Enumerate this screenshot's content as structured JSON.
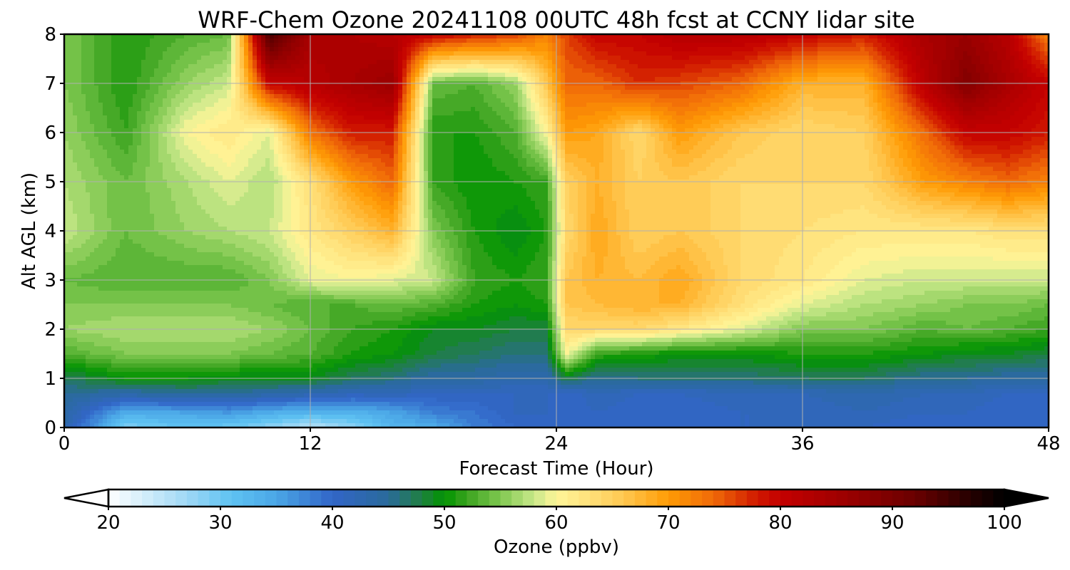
{
  "chart_data": {
    "type": "heatmap",
    "title": "WRF-Chem Ozone  20241108 00UTC 48h fcst at CCNY lidar site",
    "xlabel": "Forecast Time (Hour)",
    "ylabel": "Alt AGL (km)",
    "xlim": [
      0,
      48
    ],
    "ylim": [
      0,
      8
    ],
    "x_ticks": [
      0,
      12,
      24,
      36,
      48
    ],
    "y_ticks": [
      0,
      1,
      2,
      3,
      4,
      5,
      6,
      7,
      8
    ],
    "grid": true,
    "colorbar": {
      "label": "Ozone  (ppbv)",
      "orientation": "horizontal",
      "placement": "bottom",
      "range": [
        20,
        100
      ],
      "step": 1,
      "extend": "both",
      "ticks": [
        20,
        30,
        40,
        50,
        60,
        70,
        80,
        90,
        100
      ],
      "anchors": [
        {
          "v": 20,
          "c": "#ffffff"
        },
        {
          "v": 27,
          "c": "#9fd8f5"
        },
        {
          "v": 31,
          "c": "#5ec2f2"
        },
        {
          "v": 35,
          "c": "#4aa6e6"
        },
        {
          "v": 40,
          "c": "#3266c8"
        },
        {
          "v": 45,
          "c": "#2a6a9a"
        },
        {
          "v": 48,
          "c": "#1f8040"
        },
        {
          "v": 50,
          "c": "#009400"
        },
        {
          "v": 52,
          "c": "#3aa31f"
        },
        {
          "v": 55,
          "c": "#80c850"
        },
        {
          "v": 58,
          "c": "#c8e88a"
        },
        {
          "v": 60,
          "c": "#fff599"
        },
        {
          "v": 63,
          "c": "#ffe07a"
        },
        {
          "v": 66,
          "c": "#ffc850"
        },
        {
          "v": 70,
          "c": "#ff9b05"
        },
        {
          "v": 74,
          "c": "#f06a08"
        },
        {
          "v": 78,
          "c": "#d01800"
        },
        {
          "v": 80,
          "c": "#c40000"
        },
        {
          "v": 86,
          "c": "#9a0000"
        },
        {
          "v": 92,
          "c": "#6a0000"
        },
        {
          "v": 96,
          "c": "#320000"
        },
        {
          "v": 100,
          "c": "#000000"
        }
      ]
    },
    "z_columns": {
      "x": [
        0,
        3,
        6,
        8,
        10,
        12,
        14,
        16,
        18,
        20,
        22,
        23.5,
        24.5,
        26,
        28,
        30,
        33,
        36,
        39,
        42,
        44,
        46,
        48
      ],
      "y": [
        0,
        0.3,
        0.7,
        1,
        1.5,
        2,
        2.5,
        3,
        4,
        5,
        6,
        7,
        8
      ],
      "z": [
        [
          43,
          44,
          45,
          47,
          53,
          56,
          55,
          54,
          58,
          57,
          56,
          55,
          55
        ],
        [
          29,
          34,
          44,
          50,
          55,
          57,
          55,
          53,
          54,
          54,
          52,
          51,
          51
        ],
        [
          31,
          35,
          45,
          50,
          55,
          57,
          55,
          53,
          56,
          57,
          60,
          56,
          53
        ],
        [
          30,
          36,
          45,
          49,
          55,
          57,
          55,
          53,
          57,
          59,
          62,
          58,
          54
        ],
        [
          28,
          34,
          44,
          49,
          54,
          56,
          54,
          55,
          58,
          57,
          59,
          80,
          95
        ],
        [
          25,
          33,
          43,
          49,
          53,
          54,
          53,
          59,
          62,
          63,
          73,
          82,
          84
        ],
        [
          28,
          33,
          42,
          47,
          51,
          52,
          53,
          60,
          65,
          70,
          78,
          84,
          83
        ],
        [
          33,
          35,
          42,
          46,
          50,
          51,
          54,
          59,
          68,
          74,
          78,
          86,
          82
        ],
        [
          34,
          38,
          41,
          44,
          48,
          49,
          53,
          58,
          55,
          52,
          51,
          54,
          80
        ],
        [
          38,
          39,
          41,
          44,
          47,
          49,
          51,
          52,
          51,
          50,
          51,
          53,
          78
        ],
        [
          40,
          41,
          41,
          43,
          46,
          48,
          50,
          51,
          49,
          51,
          53,
          56,
          76
        ],
        [
          41,
          41,
          41,
          43,
          46,
          48,
          51,
          52,
          51,
          52,
          60,
          66,
          72
        ],
        [
          41,
          40,
          40,
          48,
          60,
          64,
          66,
          66,
          64,
          65,
          70,
          74,
          76
        ],
        [
          40,
          41,
          42,
          45,
          52,
          64,
          67,
          68,
          69,
          68,
          69,
          74,
          80
        ],
        [
          40,
          40,
          41,
          46,
          51,
          64,
          68,
          67,
          65,
          65,
          64,
          77,
          80
        ],
        [
          41,
          40,
          41,
          46,
          50,
          62,
          68,
          69,
          66,
          66,
          70,
          76,
          82
        ],
        [
          41,
          41,
          42,
          46,
          50,
          59,
          63,
          64,
          64,
          64,
          66,
          74,
          82
        ],
        [
          41,
          41,
          42,
          47,
          51,
          55,
          59,
          62,
          63,
          64,
          64,
          68,
          80
        ],
        [
          41,
          42,
          43,
          47,
          51,
          55,
          57,
          59,
          62,
          64,
          65,
          68,
          78
        ],
        [
          40,
          41,
          42,
          45,
          50,
          53,
          56,
          58,
          62,
          70,
          74,
          82,
          84
        ],
        [
          41,
          41,
          42,
          45,
          49,
          54,
          55,
          58,
          62,
          72,
          80,
          89,
          86
        ],
        [
          40,
          40,
          41,
          44,
          49,
          53,
          55,
          58,
          63,
          74,
          80,
          84,
          82
        ],
        [
          40,
          40,
          41,
          44,
          48,
          52,
          54,
          58,
          63,
          72,
          78,
          80,
          72
        ]
      ]
    }
  }
}
